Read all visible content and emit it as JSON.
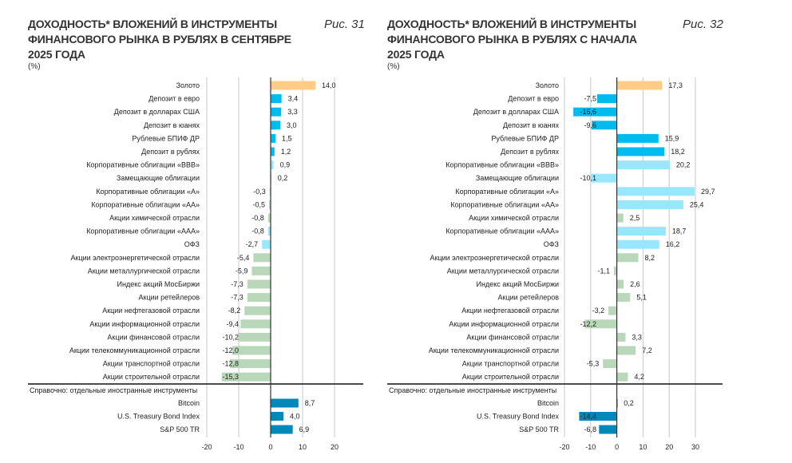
{
  "colors": {
    "gold": "#FFCC88",
    "deposit": "#00BBEE",
    "bond": "#99E6FF",
    "equity": "#B9D7B9",
    "foreign": "#0088BB",
    "grid": "#C8C8C8",
    "axis": "#333333"
  },
  "chart_data": [
    {
      "type": "bar",
      "orientation": "horizontal",
      "title": "ДОХОДНОСТЬ* ВЛОЖЕНИЙ В ИНСТРУМЕНТЫ ФИНАНСОВОГО РЫНКА В РУБЛЯХ В СЕНТЯБРЕ 2025 ГОДА",
      "title_lines": [
        "ДОХОДНОСТЬ* ВЛОЖЕНИЙ В ИНСТРУМЕНТЫ",
        "ФИНАНСОВОГО РЫНКА В РУБЛЯХ В СЕНТЯБРЕ",
        "2025 ГОДА"
      ],
      "unit": "(%)",
      "figure": "Рис. 31",
      "xlim": [
        -20,
        20
      ],
      "ticks": [
        -20,
        -10,
        0,
        10,
        20
      ],
      "grid": true,
      "separator_label": "Справочно: отдельные иностранные инструменты",
      "items": [
        {
          "label": "Золото",
          "value": 14.0,
          "text": "14,0",
          "group": "gold"
        },
        {
          "label": "Депозит в евро",
          "value": 3.4,
          "text": "3,4",
          "group": "deposit"
        },
        {
          "label": "Депозит в долларах США",
          "value": 3.3,
          "text": "3,3",
          "group": "deposit"
        },
        {
          "label": "Депозит в юанях",
          "value": 3.0,
          "text": "3,0",
          "group": "deposit"
        },
        {
          "label": "Рублевые БПИФ ДР",
          "value": 1.5,
          "text": "1,5",
          "group": "deposit"
        },
        {
          "label": "Депозит в рублях",
          "value": 1.2,
          "text": "1,2",
          "group": "deposit"
        },
        {
          "label": "Корпоративные облигации «ВВВ»",
          "value": 0.9,
          "text": "0,9",
          "group": "bond"
        },
        {
          "label": "Замещающие облигации",
          "value": 0.2,
          "text": "0,2",
          "group": "bond"
        },
        {
          "label": "Корпоративные облигации «А»",
          "value": -0.3,
          "text": "-0,3",
          "group": "bond"
        },
        {
          "label": "Корпоративные облигации «АА»",
          "value": -0.5,
          "text": "-0,5",
          "group": "bond"
        },
        {
          "label": "Акции химической отрасли",
          "value": -0.8,
          "text": "-0,8",
          "group": "equity"
        },
        {
          "label": "Корпоративные облигации «ААА»",
          "value": -0.8,
          "text": "-0,8",
          "group": "bond"
        },
        {
          "label": "ОФЗ",
          "value": -2.7,
          "text": "-2,7",
          "group": "bond"
        },
        {
          "label": "Акции электроэнергетической отрасли",
          "value": -5.4,
          "text": "-5,4",
          "group": "equity"
        },
        {
          "label": "Акции металлургической отрасли",
          "value": -5.9,
          "text": "-5,9",
          "group": "equity"
        },
        {
          "label": "Индекс акций МосБиржи",
          "value": -7.3,
          "text": "-7,3",
          "group": "equity"
        },
        {
          "label": "Акции ретейлеров",
          "value": -7.3,
          "text": "-7,3",
          "group": "equity"
        },
        {
          "label": "Акции нефтегазовой отрасли",
          "value": -8.2,
          "text": "-8,2",
          "group": "equity"
        },
        {
          "label": "Акции информационной отрасли",
          "value": -9.4,
          "text": "-9,4",
          "group": "equity"
        },
        {
          "label": "Акции финансовой отрасли",
          "value": -10.2,
          "text": "-10,2",
          "group": "equity"
        },
        {
          "label": "Акции телекоммуникационной отрасли",
          "value": -12.0,
          "text": "-12,0",
          "group": "equity"
        },
        {
          "label": "Акции транспортной отрасли",
          "value": -12.8,
          "text": "-12,8",
          "group": "equity"
        },
        {
          "label": "Акции строительной отрасли",
          "value": -15.3,
          "text": "-15,3",
          "group": "equity"
        }
      ],
      "reference_items": [
        {
          "label": "Bitcoin",
          "value": 8.7,
          "text": "8,7",
          "group": "foreign"
        },
        {
          "label": "U.S. Treasury Bond Index",
          "value": 4.0,
          "text": "4,0",
          "group": "foreign"
        },
        {
          "label": "S&P 500 TR",
          "value": 6.9,
          "text": "6,9",
          "group": "foreign"
        }
      ]
    },
    {
      "type": "bar",
      "orientation": "horizontal",
      "title": "ДОХОДНОСТЬ* ВЛОЖЕНИЙ В ИНСТРУМЕНТЫ ФИНАНСОВОГО РЫНКА В РУБЛЯХ С НАЧАЛА 2025 ГОДА",
      "title_lines": [
        "ДОХОДНОСТЬ* ВЛОЖЕНИЙ В ИНСТРУМЕНТЫ",
        "ФИНАНСОВОГО РЫНКА В РУБЛЯХ С НАЧАЛА",
        "2025 ГОДА"
      ],
      "unit": "(%)",
      "figure": "Рис. 32",
      "xlim": [
        -20,
        30
      ],
      "ticks": [
        -20,
        -10,
        0,
        10,
        20,
        30
      ],
      "grid": true,
      "separator_label": "Справочно: отдельные иностранные инструменты",
      "items": [
        {
          "label": "Золото",
          "value": 17.3,
          "text": "17,3",
          "group": "gold"
        },
        {
          "label": "Депозит в евро",
          "value": -7.5,
          "text": "-7,5",
          "group": "deposit"
        },
        {
          "label": "Депозит в долларах США",
          "value": -16.6,
          "text": "-16,6",
          "group": "deposit"
        },
        {
          "label": "Депозит в юанях",
          "value": -9.6,
          "text": "-9,6",
          "group": "deposit"
        },
        {
          "label": "Рублевые БПИФ ДР",
          "value": 15.9,
          "text": "15,9",
          "group": "deposit"
        },
        {
          "label": "Депозит в рублях",
          "value": 18.2,
          "text": "18,2",
          "group": "deposit"
        },
        {
          "label": "Корпоративные облигации «ВВВ»",
          "value": 20.2,
          "text": "20,2",
          "group": "bond"
        },
        {
          "label": "Замещающие облигации",
          "value": -10.1,
          "text": "-10,1",
          "group": "bond"
        },
        {
          "label": "Корпоративные облигации «А»",
          "value": 29.7,
          "text": "29,7",
          "group": "bond"
        },
        {
          "label": "Корпоративные облигации «АА»",
          "value": 25.4,
          "text": "25,4",
          "group": "bond"
        },
        {
          "label": "Акции химической отрасли",
          "value": 2.5,
          "text": "2,5",
          "group": "equity"
        },
        {
          "label": "Корпоративные облигации «ААА»",
          "value": 18.7,
          "text": "18,7",
          "group": "bond"
        },
        {
          "label": "ОФЗ",
          "value": 16.2,
          "text": "16,2",
          "group": "bond"
        },
        {
          "label": "Акции электроэнергетической отрасли",
          "value": 8.2,
          "text": "8,2",
          "group": "equity"
        },
        {
          "label": "Акции металлургической отрасли",
          "value": -1.1,
          "text": "-1,1",
          "group": "equity"
        },
        {
          "label": "Индекс акций МосБиржи",
          "value": 2.6,
          "text": "2,6",
          "group": "equity"
        },
        {
          "label": "Акции ретейлеров",
          "value": 5.1,
          "text": "5,1",
          "group": "equity"
        },
        {
          "label": "Акции нефтегазовой отрасли",
          "value": -3.2,
          "text": "-3,2",
          "group": "equity"
        },
        {
          "label": "Акции информационной отрасли",
          "value": -12.2,
          "text": "-12,2",
          "group": "equity"
        },
        {
          "label": "Акции финансовой отрасли",
          "value": 3.3,
          "text": "3,3",
          "group": "equity"
        },
        {
          "label": "Акции телекоммуникационной отрасли",
          "value": 7.2,
          "text": "7,2",
          "group": "equity"
        },
        {
          "label": "Акции транспортной отрасли",
          "value": -5.3,
          "text": "-5,3",
          "group": "equity"
        },
        {
          "label": "Акции строительной отрасли",
          "value": 4.2,
          "text": "4,2",
          "group": "equity"
        }
      ],
      "reference_items": [
        {
          "label": "Bitcoin",
          "value": 0.2,
          "text": "0,2",
          "group": "foreign"
        },
        {
          "label": "U.S. Treasury Bond Index",
          "value": -14.4,
          "text": "-14,4",
          "group": "foreign"
        },
        {
          "label": "S&P 500 TR",
          "value": -6.8,
          "text": "-6,8",
          "group": "foreign"
        }
      ]
    }
  ]
}
